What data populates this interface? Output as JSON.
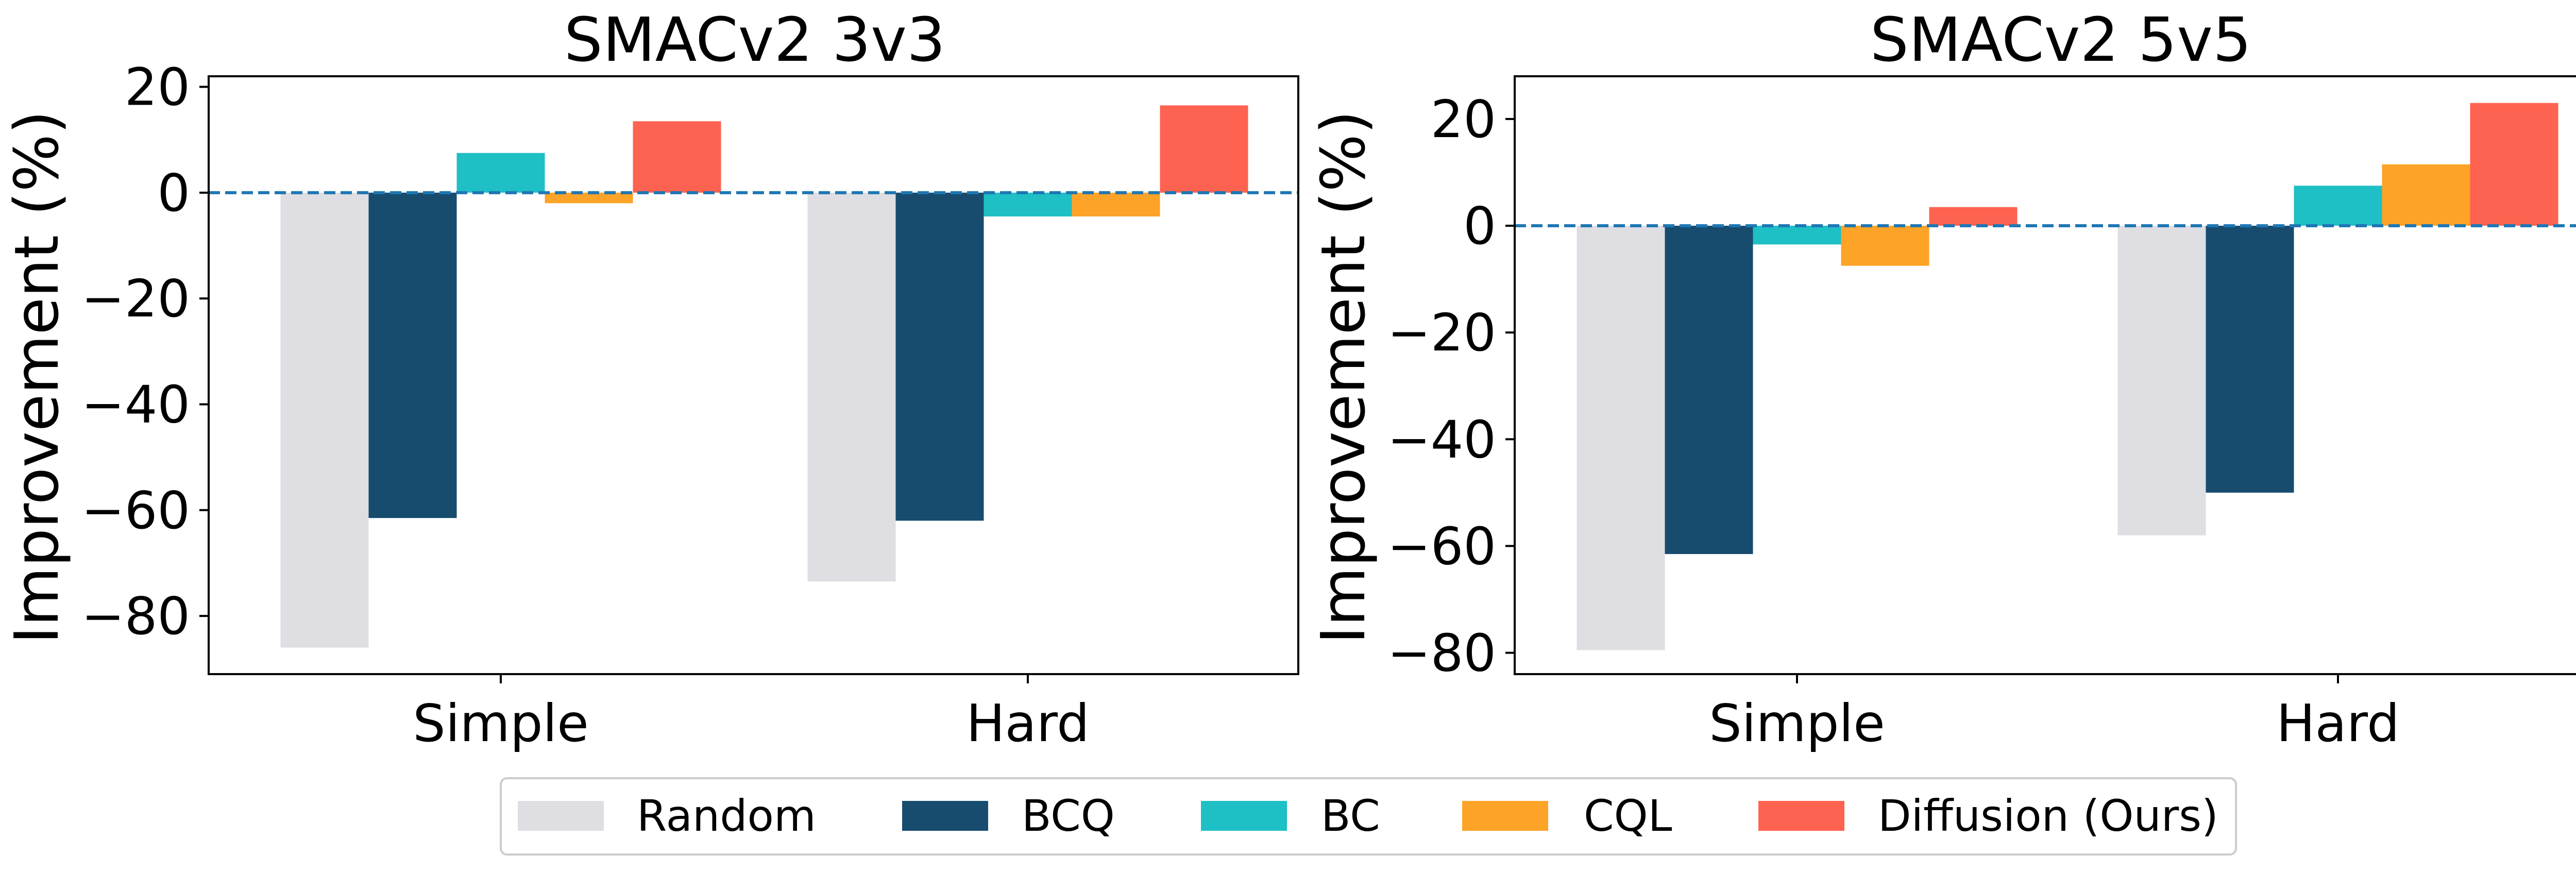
{
  "chart_data": [
    {
      "type": "bar",
      "title": "SMACv2 3v3",
      "xlabel": "",
      "ylabel": "Improvement (%)",
      "categories": [
        "Simple",
        "Hard"
      ],
      "ylim": [
        -91,
        22
      ],
      "yticks": [
        20,
        0,
        -20,
        -40,
        -60,
        -80
      ],
      "ytick_labels": [
        "20",
        "0",
        "−20",
        "−40",
        "−60",
        "−80"
      ],
      "baseline": 0,
      "series": [
        {
          "name": "Random",
          "values": [
            -86,
            -73.5
          ]
        },
        {
          "name": "BCQ",
          "values": [
            -61.5,
            -62
          ]
        },
        {
          "name": "BC",
          "values": [
            7.5,
            -4.5
          ]
        },
        {
          "name": "CQL",
          "values": [
            -2,
            -4.5
          ]
        },
        {
          "name": "Diffusion (Ours)",
          "values": [
            13.5,
            16.5
          ]
        }
      ]
    },
    {
      "type": "bar",
      "title": "SMACv2 5v5",
      "xlabel": "",
      "ylabel": "Improvement (%)",
      "categories": [
        "Simple",
        "Hard"
      ],
      "ylim": [
        -84,
        28
      ],
      "yticks": [
        20,
        0,
        -20,
        -40,
        -60,
        -80
      ],
      "ytick_labels": [
        "20",
        "0",
        "−20",
        "−40",
        "−60",
        "−80"
      ],
      "baseline": 0,
      "series": [
        {
          "name": "Random",
          "values": [
            -79.5,
            -58
          ]
        },
        {
          "name": "BCQ",
          "values": [
            -61.5,
            -50
          ]
        },
        {
          "name": "BC",
          "values": [
            -3.5,
            7.5
          ]
        },
        {
          "name": "CQL",
          "values": [
            -7.5,
            11.5
          ]
        },
        {
          "name": "Diffusion (Ours)",
          "values": [
            3.5,
            23
          ]
        }
      ]
    }
  ],
  "legend": {
    "position": "bottom-center",
    "items": [
      "Random",
      "BCQ",
      "BC",
      "CQL",
      "Diffusion (Ours)"
    ]
  },
  "colors": {
    "Random": "#dedee3",
    "BCQ": "#174c6f",
    "BC": "#1fbfc6",
    "CQL": "#fda328",
    "Diffusion (Ours)": "#fe6250",
    "baseline": "#1f77b4"
  }
}
